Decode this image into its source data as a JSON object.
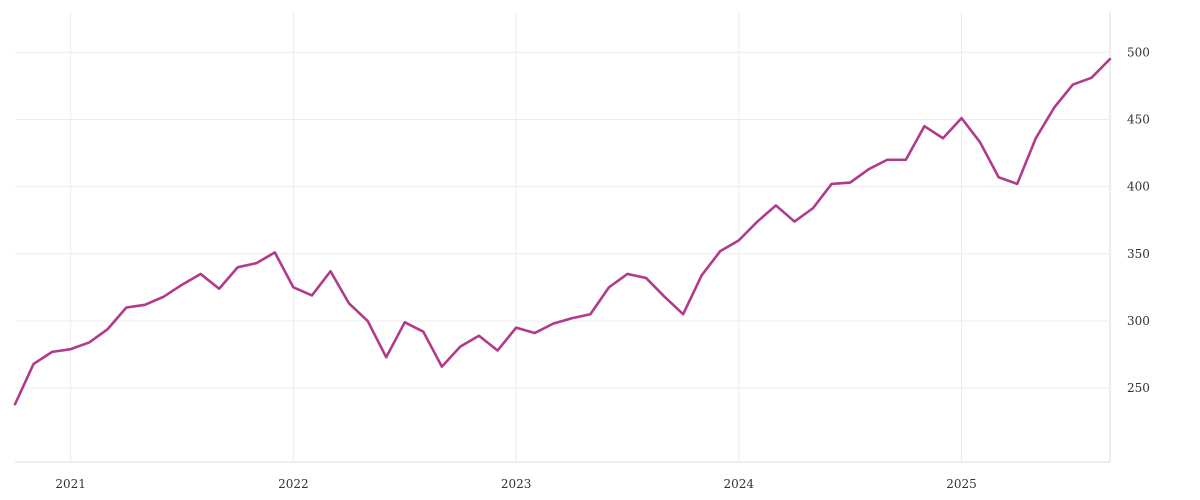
{
  "chart_data": {
    "type": "line",
    "title": "",
    "xlabel": "",
    "ylabel": "",
    "grid": true,
    "legend": "none",
    "line_color": "#b03a8c",
    "xlim": [
      "2020-10",
      "2025-09"
    ],
    "ylim": [
      195,
      530
    ],
    "x_ticks": [
      "2021",
      "2022",
      "2023",
      "2024",
      "2025"
    ],
    "y_ticks": [
      250,
      300,
      350,
      400,
      450,
      500
    ],
    "y_tick_labels": [
      "250",
      "300",
      "350",
      "400",
      "450",
      "500"
    ],
    "series": [
      {
        "x": [
          "2020-10",
          "2020-11",
          "2020-12",
          "2021-01",
          "2021-02",
          "2021-03",
          "2021-04",
          "2021-05",
          "2021-06",
          "2021-07",
          "2021-08",
          "2021-09",
          "2021-10",
          "2021-11",
          "2021-12",
          "2022-01",
          "2022-02",
          "2022-03",
          "2022-04",
          "2022-05",
          "2022-06",
          "2022-07",
          "2022-08",
          "2022-09",
          "2022-10",
          "2022-11",
          "2022-12",
          "2023-01",
          "2023-02",
          "2023-03",
          "2023-04",
          "2023-05",
          "2023-06",
          "2023-07",
          "2023-08",
          "2023-09",
          "2023-10",
          "2023-11",
          "2023-12",
          "2024-01",
          "2024-02",
          "2024-03",
          "2024-04",
          "2024-05",
          "2024-06",
          "2024-07",
          "2024-08",
          "2024-09",
          "2024-10",
          "2024-11",
          "2024-12",
          "2025-01",
          "2025-02",
          "2025-03",
          "2025-04",
          "2025-05",
          "2025-06",
          "2025-07",
          "2025-08",
          "2025-09"
        ],
        "values": [
          238,
          268,
          277,
          279,
          284,
          294,
          310,
          312,
          318,
          327,
          335,
          324,
          340,
          343,
          351,
          325,
          319,
          337,
          313,
          300,
          273,
          299,
          292,
          266,
          281,
          289,
          278,
          295,
          291,
          298,
          302,
          305,
          325,
          335,
          332,
          318,
          305,
          334,
          352,
          360,
          374,
          386,
          374,
          384,
          402,
          403,
          413,
          420,
          420,
          445,
          436,
          451,
          433,
          407,
          402,
          436,
          459,
          476,
          481,
          495
        ]
      }
    ]
  }
}
